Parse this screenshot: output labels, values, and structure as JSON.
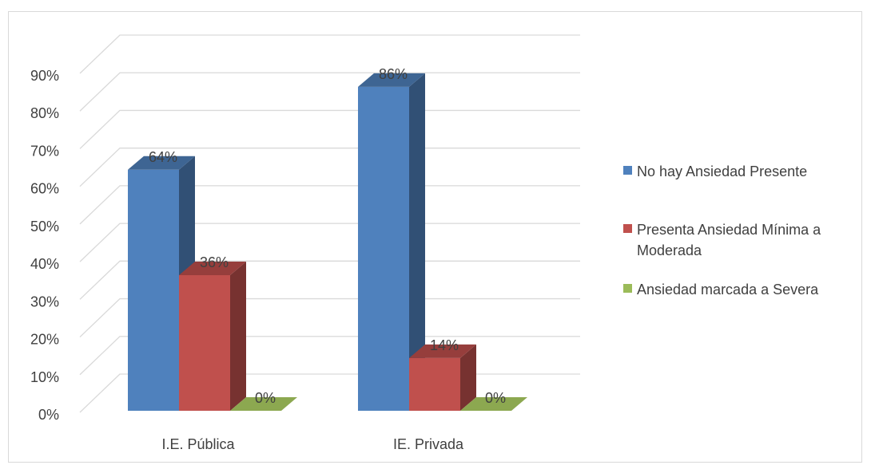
{
  "chart_data": {
    "type": "bar",
    "categories": [
      "I.E. Pública",
      "IE. Privada"
    ],
    "series": [
      {
        "name": "No hay Ansiedad Presente",
        "values": [
          64,
          86
        ],
        "labels": [
          "64%",
          "86%"
        ],
        "color": "#4f81bd"
      },
      {
        "name": "Presenta Ansiedad Mínima a Moderada",
        "values": [
          36,
          14
        ],
        "labels": [
          "36%",
          "14%"
        ],
        "color": "#c0504d"
      },
      {
        "name": "Ansiedad marcada a Severa",
        "values": [
          0,
          0
        ],
        "labels": [
          "0%",
          "0%"
        ],
        "color": "#9bbb59"
      }
    ],
    "ylim": [
      0,
      90
    ],
    "ytick_labels": [
      "0%",
      "10%",
      "20%",
      "30%",
      "40%",
      "50%",
      "60%",
      "70%",
      "80%",
      "90%"
    ],
    "grid": true,
    "style": "3d-clustered-column",
    "legend_position": "right"
  }
}
